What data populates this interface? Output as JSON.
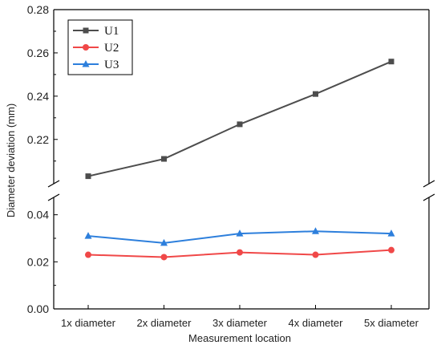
{
  "chart_data": {
    "type": "line",
    "xlabel": "Measurement location",
    "ylabel": "Diameter deviation (mm)",
    "categories": [
      "1x diameter",
      "2x diameter",
      "3x diameter",
      "4x diameter",
      "5x diameter"
    ],
    "axis_break": {
      "lower_range": [
        0.0,
        0.045
      ],
      "upper_range": [
        0.201,
        0.28
      ]
    },
    "yticks_lower": [
      "0.00",
      "0.02",
      "0.04"
    ],
    "yticks_upper": [
      "0.22",
      "0.24",
      "0.26",
      "0.28"
    ],
    "legend_position": "top-left",
    "grid": false,
    "series": [
      {
        "name": "U1",
        "color": "#4d4d4d",
        "marker": "square",
        "values": [
          0.203,
          0.211,
          0.227,
          0.241,
          0.256
        ]
      },
      {
        "name": "U2",
        "color": "#f04848",
        "marker": "circle",
        "values": [
          0.023,
          0.022,
          0.024,
          0.023,
          0.025
        ]
      },
      {
        "name": "U3",
        "color": "#2d7fdc",
        "marker": "triangle",
        "values": [
          0.031,
          0.028,
          0.032,
          0.033,
          0.032
        ]
      }
    ]
  }
}
